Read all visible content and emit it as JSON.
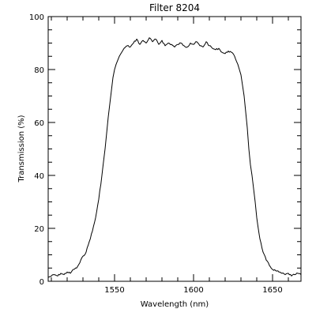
{
  "chart_data": {
    "type": "line",
    "title": "Filter 8204",
    "xlabel": "Wavelength (nm)",
    "ylabel": "Transmission (%)",
    "xlim": [
      1508,
      1668
    ],
    "ylim": [
      0,
      100
    ],
    "xticks": [
      1550,
      1600,
      1650
    ],
    "xtick_labels": [
      "1550",
      "1600",
      "1650"
    ],
    "yticks": [
      0,
      20,
      40,
      60,
      80,
      100
    ],
    "ytick_labels": [
      "0",
      "20",
      "40",
      "60",
      "80",
      "100"
    ],
    "grid": false,
    "colors": {
      "line": "#000000",
      "axes": "#000000",
      "background": "#ffffff"
    },
    "series": [
      {
        "x": [
          1508,
          1510,
          1512,
          1514,
          1516,
          1518,
          1520,
          1522,
          1524,
          1526,
          1528,
          1530,
          1532,
          1534,
          1536,
          1538,
          1540,
          1542,
          1544,
          1545,
          1546,
          1547,
          1548,
          1549,
          1550,
          1551,
          1552,
          1553,
          1554,
          1555,
          1556,
          1558,
          1560,
          1562,
          1564,
          1566,
          1568,
          1570,
          1572,
          1574,
          1576,
          1578,
          1580,
          1582,
          1584,
          1586,
          1588,
          1590,
          1592,
          1594,
          1596,
          1598,
          1600,
          1602,
          1604,
          1606,
          1608,
          1610,
          1612,
          1614,
          1616,
          1618,
          1620,
          1622,
          1624,
          1626,
          1628,
          1629,
          1630,
          1631,
          1632,
          1633,
          1634,
          1635,
          1636,
          1637,
          1638,
          1639,
          1640,
          1642,
          1644,
          1646,
          1648,
          1650,
          1652,
          1654,
          1656,
          1658,
          1660,
          1662,
          1664,
          1666,
          1668
        ],
        "y": [
          1.5,
          2.0,
          2.5,
          2.0,
          3.0,
          2.5,
          3.5,
          3.0,
          4.5,
          5.0,
          7.0,
          9.5,
          11.0,
          15.0,
          19.0,
          24.0,
          31.0,
          40.0,
          50.0,
          56.0,
          62.0,
          67.0,
          72.0,
          77.0,
          80.0,
          82.0,
          83.5,
          85.0,
          86.0,
          87.0,
          88.0,
          89.0,
          88.5,
          90.0,
          91.5,
          89.5,
          91.0,
          90.0,
          92.0,
          90.5,
          91.5,
          89.5,
          91.0,
          89.0,
          90.0,
          89.5,
          88.5,
          89.5,
          90.0,
          89.0,
          88.5,
          90.0,
          89.5,
          90.5,
          89.0,
          88.5,
          90.5,
          89.0,
          88.0,
          87.5,
          88.0,
          86.5,
          86.0,
          87.0,
          86.5,
          85.0,
          82.0,
          80.0,
          78.0,
          74.0,
          70.0,
          64.0,
          58.0,
          50.0,
          44.0,
          40.0,
          35.0,
          30.0,
          24.0,
          16.0,
          11.0,
          8.0,
          6.0,
          4.5,
          4.0,
          3.5,
          3.0,
          2.5,
          3.0,
          2.0,
          2.5,
          3.0,
          2.5
        ]
      }
    ]
  }
}
